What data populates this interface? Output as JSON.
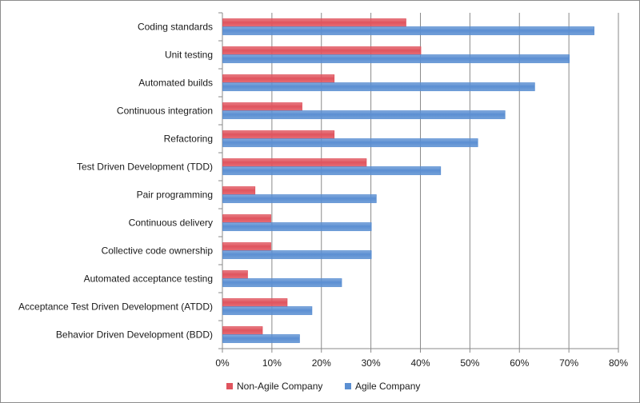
{
  "chart_data": {
    "type": "bar",
    "orientation": "horizontal",
    "categories": [
      "Coding standards",
      "Unit testing",
      "Automated builds",
      "Continuous integration",
      "Refactoring",
      "Test Driven Development (TDD)",
      "Pair programming",
      "Continuous delivery",
      "Collective code ownership",
      "Automated acceptance testing",
      "Acceptance Test Driven Development (ATDD)",
      "Behavior Driven Development (BDD)"
    ],
    "series": [
      {
        "name": "Non-Agile Company",
        "color": "#e0545e",
        "values": [
          37,
          40,
          22.5,
          16,
          22.5,
          29,
          6.5,
          9.7,
          9.7,
          5,
          13,
          8
        ]
      },
      {
        "name": "Agile Company",
        "color": "#5b8fd2",
        "values": [
          75,
          70,
          63,
          57,
          51.5,
          44,
          31,
          30,
          30,
          24,
          18,
          15.5
        ]
      }
    ],
    "xlim": [
      0,
      80
    ],
    "xticks": [
      0,
      10,
      20,
      30,
      40,
      50,
      60,
      70,
      80
    ],
    "tick_format": "{v}%",
    "grid": true,
    "legend_position": "bottom"
  }
}
